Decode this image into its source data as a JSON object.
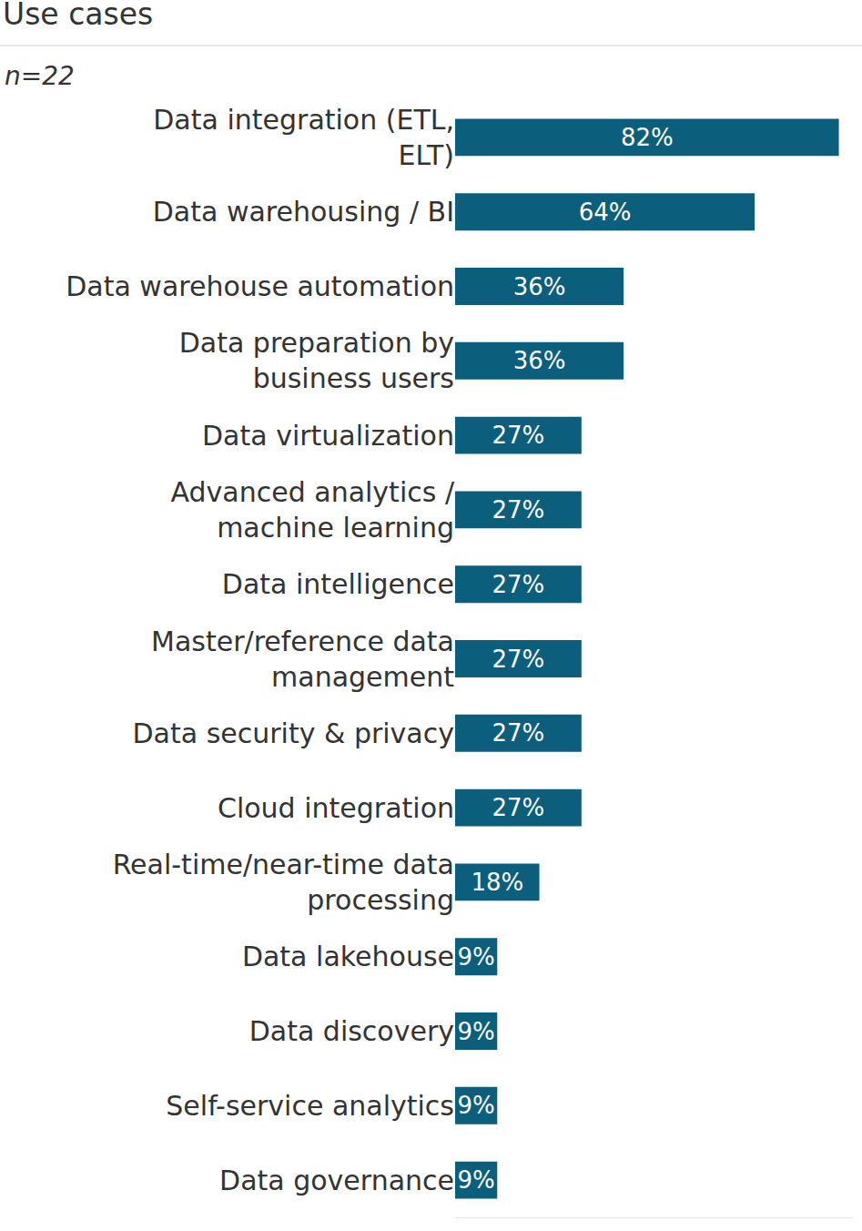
{
  "chart_data": {
    "type": "bar",
    "title": "Use cases",
    "subtitle": "n=22",
    "orientation": "horizontal",
    "categories": [
      "Data integration (ETL, ELT)",
      "Data warehousing / BI",
      "Data warehouse automation",
      "Data preparation by business users",
      "Data virtualization",
      "Advanced analytics / machine learning",
      "Data intelligence",
      "Master/reference data management",
      "Data security & privacy",
      "Cloud integration",
      "Real-time/near-time data processing",
      "Data lakehouse",
      "Data discovery",
      "Self-service analytics",
      "Data governance"
    ],
    "values": [
      82,
      64,
      36,
      36,
      27,
      27,
      27,
      27,
      27,
      27,
      18,
      9,
      9,
      9,
      9
    ],
    "value_labels": [
      "82%",
      "64%",
      "36%",
      "36%",
      "27%",
      "27%",
      "27%",
      "27%",
      "27%",
      "27%",
      "18%",
      "9%",
      "9%",
      "9%",
      "9%"
    ],
    "color": "#0b5e7c",
    "xlim": [
      0,
      85
    ],
    "data_labels": true,
    "tick_labels": "y",
    "grid": false
  }
}
